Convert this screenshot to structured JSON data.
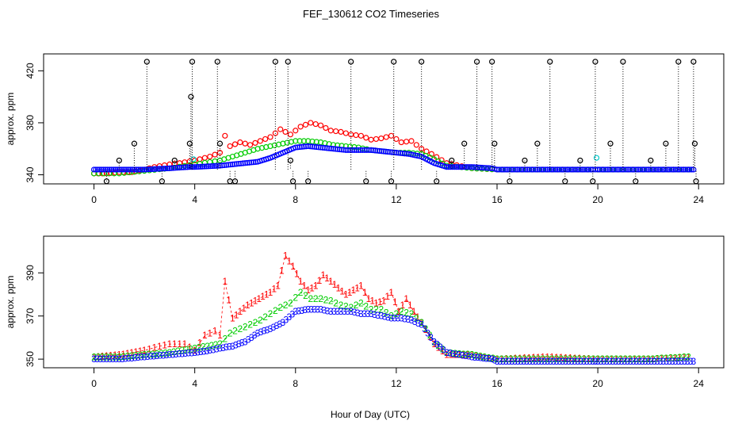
{
  "title": "FEF_130612  CO2 Timeseries",
  "xlabel": "Hour of Day (UTC)",
  "colors": {
    "red": "#ff0000",
    "green": "#00cc00",
    "blue": "#0000ff",
    "cyan": "#00cccc",
    "black": "#000000"
  },
  "chart_data": [
    {
      "type": "scatter",
      "ylabel": "approx. ppm",
      "xlim": [
        -2,
        25
      ],
      "ylim": [
        333,
        433
      ],
      "xticks": [
        "0",
        "4",
        "8",
        "12",
        "16",
        "20",
        "24"
      ],
      "yticks": [
        "340",
        "380",
        "420"
      ],
      "series": [
        {
          "name": "red",
          "x": [
            0,
            0.5,
            1,
            1.5,
            2,
            2.4,
            3,
            3.4,
            4,
            4.6,
            5,
            5.2,
            5.4,
            5.8,
            6.2,
            6.6,
            7,
            7.4,
            7.8,
            8.2,
            8.6,
            9,
            9.4,
            9.8,
            10.2,
            10.6,
            11,
            11.4,
            11.8,
            12.2,
            12.6,
            13,
            13.4,
            14,
            15,
            16,
            18,
            20,
            22,
            23.6
          ],
          "y": [
            341,
            341,
            342,
            342,
            344,
            346,
            348,
            349,
            351,
            354,
            357,
            370,
            362,
            365,
            363,
            366,
            369,
            375,
            371,
            377,
            380,
            378,
            374,
            373,
            371,
            370,
            367,
            368,
            370,
            365,
            366,
            360,
            356,
            349,
            345,
            344,
            344,
            344,
            344,
            344
          ]
        },
        {
          "name": "green",
          "x": [
            0,
            1,
            2,
            3,
            4,
            5,
            5.5,
            6,
            6.5,
            7,
            7.5,
            8,
            8.5,
            9,
            9.5,
            10,
            10.5,
            11,
            11.5,
            12,
            12.5,
            13,
            13.5,
            14,
            15,
            16,
            18,
            20,
            22,
            23.6
          ],
          "y": [
            341,
            341,
            343,
            345,
            348,
            351,
            354,
            357,
            360,
            362,
            364,
            366,
            366,
            365,
            363,
            362,
            361,
            359,
            358,
            357,
            357,
            356,
            352,
            347,
            345,
            344,
            344,
            344,
            344,
            344
          ]
        },
        {
          "name": "blue",
          "x": [
            0,
            1,
            2,
            3,
            3.8,
            4,
            5,
            5.5,
            6,
            6.5,
            7,
            7.5,
            8,
            8.5,
            9,
            9.5,
            10,
            10.5,
            11,
            11.5,
            12,
            12.5,
            13,
            13.5,
            14,
            15,
            15.8,
            16,
            18,
            19.8,
            20,
            22,
            23.8
          ],
          "y": [
            344,
            344,
            344,
            345,
            346,
            346,
            347,
            348,
            349,
            350,
            353,
            357,
            361,
            362,
            361,
            360,
            359,
            359,
            359,
            358,
            357,
            356,
            354,
            349,
            346,
            346,
            345,
            344,
            344,
            344,
            344,
            344,
            344
          ]
        },
        {
          "name": "cyan",
          "x": [
            3.95,
            19.95
          ],
          "y": [
            352,
            353
          ]
        },
        {
          "name": "black",
          "x": [
            0.5,
            1,
            1.6,
            2.1,
            2.7,
            3.2,
            3.8,
            3.85,
            3.9,
            4.9,
            5,
            5.4,
            5.6,
            7.2,
            7.7,
            7.8,
            7.9,
            8.5,
            10.2,
            10.8,
            11.8,
            11.9,
            13,
            13.6,
            14.2,
            14.7,
            15.2,
            15.8,
            15.9,
            16.5,
            17.1,
            17.6,
            18.1,
            18.7,
            19.3,
            19.8,
            19.9,
            20.5,
            21,
            21.5,
            22.1,
            22.7,
            23.2,
            23.8,
            23.85,
            23.9
          ],
          "y": [
            335,
            351,
            364,
            427,
            335,
            351,
            364,
            400,
            427,
            427,
            364,
            335,
            335,
            427,
            427,
            351,
            335,
            335,
            427,
            335,
            335,
            427,
            427,
            335,
            351,
            364,
            427,
            427,
            364,
            335,
            351,
            364,
            427,
            335,
            351,
            335,
            427,
            364,
            427,
            335,
            351,
            364,
            427,
            427,
            364,
            335
          ]
        }
      ]
    },
    {
      "type": "scatter",
      "ylabel": "approx. ppm",
      "xlim": [
        -2,
        25
      ],
      "ylim": [
        346,
        407
      ],
      "xticks": [
        "0",
        "4",
        "8",
        "12",
        "16",
        "20",
        "24"
      ],
      "yticks": [
        "350",
        "370",
        "390"
      ],
      "series": [
        {
          "name": "1",
          "x": [
            0,
            1,
            2,
            2.6,
            3,
            3.6,
            4,
            4.4,
            4.8,
            5,
            5.2,
            5.5,
            5.8,
            6.1,
            6.4,
            6.7,
            7,
            7.3,
            7.6,
            7.9,
            8.2,
            8.5,
            8.8,
            9.1,
            9.4,
            9.7,
            10,
            10.3,
            10.6,
            10.9,
            11.2,
            11.5,
            11.8,
            12.1,
            12.4,
            12.7,
            13,
            13.5,
            14,
            15,
            16,
            18,
            20,
            22,
            23.6
          ],
          "y": [
            351,
            352,
            354,
            356,
            357,
            357,
            354,
            361,
            363,
            361,
            386,
            369,
            372,
            375,
            377,
            379,
            381,
            384,
            398,
            393,
            386,
            382,
            384,
            389,
            386,
            383,
            380,
            382,
            384,
            378,
            376,
            377,
            381,
            372,
            378,
            372,
            367,
            357,
            352,
            352,
            350,
            351,
            350,
            350,
            351
          ]
        },
        {
          "name": "2",
          "x": [
            0,
            1,
            2,
            3,
            4,
            5,
            5.4,
            5.8,
            6.2,
            6.6,
            7,
            7.4,
            7.8,
            8.2,
            8.6,
            9,
            9.4,
            9.8,
            10.2,
            10.6,
            11,
            11.4,
            11.8,
            12.2,
            12.6,
            13,
            13.5,
            14,
            15,
            16,
            18,
            20,
            22,
            23.6
          ],
          "y": [
            351,
            351,
            352,
            353,
            355,
            357,
            362,
            364,
            366,
            368,
            371,
            374,
            376,
            381,
            378,
            378,
            377,
            375,
            374,
            376,
            373,
            373,
            370,
            372,
            371,
            367,
            358,
            353,
            352,
            350,
            350,
            350,
            350,
            351
          ]
        },
        {
          "name": "3",
          "x": [
            0,
            1,
            2,
            3,
            4,
            4.6,
            5,
            5.5,
            6,
            6.5,
            7,
            7.5,
            8,
            8.5,
            9,
            9.4,
            9.8,
            10.2,
            10.6,
            11,
            11.4,
            11.8,
            12.2,
            12.6,
            13,
            13.5,
            14,
            15,
            15.8,
            16,
            18,
            19.8,
            20,
            22,
            23.8
          ],
          "y": [
            350,
            350,
            351,
            352,
            353,
            354,
            355,
            356,
            358,
            362,
            364,
            367,
            372,
            373,
            373,
            372,
            372,
            372,
            371,
            371,
            370,
            369,
            369,
            368,
            366,
            358,
            353,
            351,
            350,
            349,
            349,
            349,
            349,
            349,
            349
          ]
        }
      ]
    }
  ]
}
